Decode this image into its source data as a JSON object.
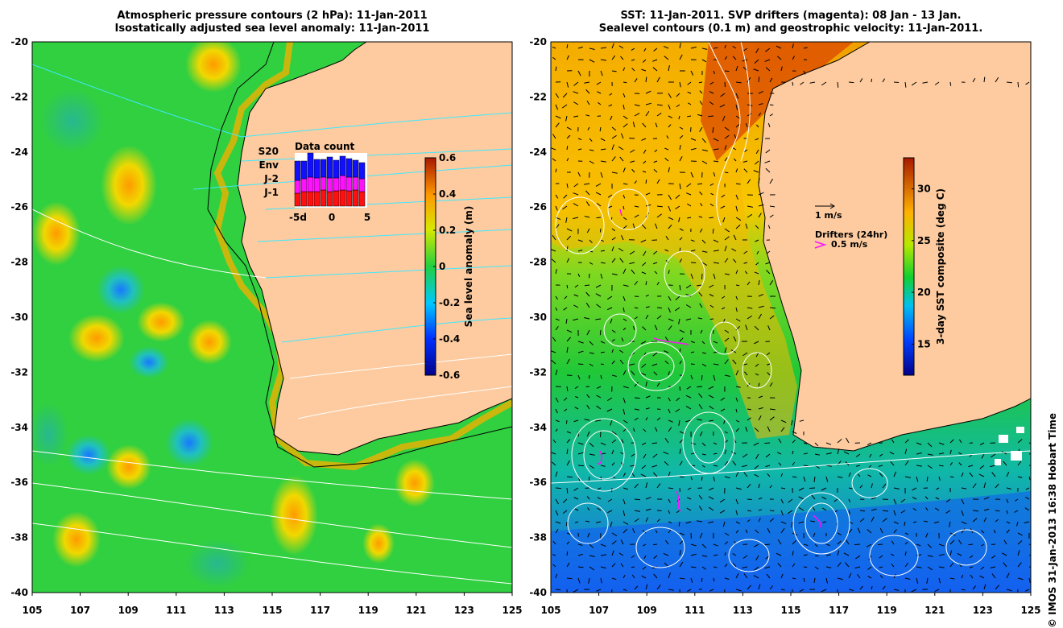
{
  "left_map": {
    "title_line1": "Atmospheric pressure contours (2 hPa): 11-Jan-2011",
    "title_line2": "Isostatically adjusted sea level anomaly: 11-Jan-2011",
    "x_ticks": [
      "105",
      "107",
      "109",
      "111",
      "113",
      "115",
      "117",
      "119",
      "121",
      "123",
      "125"
    ],
    "y_ticks": [
      "-20",
      "-22",
      "-24",
      "-26",
      "-28",
      "-30",
      "-32",
      "-34",
      "-36",
      "-38",
      "-40"
    ],
    "colorbar": {
      "label": "Sea level anomaly (m)",
      "ticks": [
        "0.6",
        "0.4",
        "0.2",
        "0",
        "-0.2",
        "-0.4",
        "-0.6"
      ],
      "range": [
        -0.6,
        0.6
      ]
    },
    "data_count": {
      "title": "Data count",
      "series": [
        "S20",
        "Env",
        "J-2",
        "J-1"
      ],
      "series_colors": [
        "#000000",
        "#1010ff",
        "#ff10ff",
        "#ff1010"
      ],
      "x_ticks": [
        "-5d",
        "0",
        "5"
      ]
    }
  },
  "right_map": {
    "title_line1": "SST: 11-Jan-2011. SVP drifters (magenta): 08 Jan - 13 Jan.",
    "title_line2": "Sealevel contours (0.1 m) and geostrophic velocity: 11-Jan-2011.",
    "x_ticks": [
      "105",
      "107",
      "109",
      "111",
      "113",
      "115",
      "117",
      "119",
      "121",
      "123",
      "125"
    ],
    "y_ticks": [
      "-20",
      "-22",
      "-24",
      "-26",
      "-28",
      "-30",
      "-32",
      "-34",
      "-36",
      "-38",
      "-40"
    ],
    "colorbar": {
      "label": "3-day SST composite (deg C)",
      "ticks": [
        "30",
        "25",
        "20",
        "15"
      ],
      "range": [
        12,
        33
      ]
    },
    "velocity_scale": "1 m/s",
    "drifters_label": "Drifters (24hr)",
    "drifter_scale": "0.5 m/s"
  },
  "credit": "© IMOS 31-Jan-2013 16:38 Hobart Time",
  "colors": {
    "land": "#fdcb9f",
    "magenta": "#ff10ff",
    "contour_cyan": "#40e8ff"
  }
}
